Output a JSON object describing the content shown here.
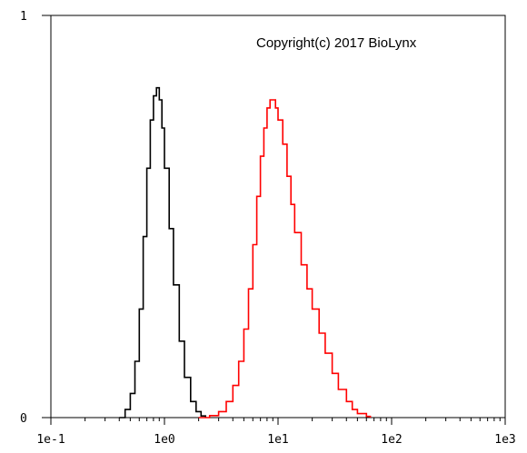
{
  "chart_data": {
    "type": "line",
    "title": "",
    "xlabel": "",
    "ylabel": "",
    "x_scale": "log",
    "xlim": [
      0.1,
      1000
    ],
    "ylim": [
      0,
      1
    ],
    "x_ticks": [
      "1e-1",
      "1e0",
      "1e1",
      "1e2",
      "1e3"
    ],
    "y_ticks": [
      "0",
      "1"
    ],
    "annotation": "Copyright(c) 2017 BioLynx",
    "grid": false,
    "legend": "none",
    "series": [
      {
        "color": "#000000",
        "style": "step",
        "x": [
          0.4,
          0.45,
          0.5,
          0.55,
          0.6,
          0.65,
          0.7,
          0.75,
          0.8,
          0.85,
          0.9,
          0.95,
          1.0,
          1.1,
          1.2,
          1.35,
          1.5,
          1.7,
          1.9,
          2.1,
          2.3
        ],
        "y": [
          0.0,
          0.02,
          0.06,
          0.14,
          0.27,
          0.45,
          0.62,
          0.74,
          0.8,
          0.82,
          0.79,
          0.72,
          0.62,
          0.47,
          0.33,
          0.19,
          0.1,
          0.04,
          0.015,
          0.004,
          0.0
        ]
      },
      {
        "color": "#ff0000",
        "style": "step",
        "x": [
          2.0,
          2.5,
          3.0,
          3.5,
          4.0,
          4.5,
          5.0,
          5.5,
          6.0,
          6.5,
          7.0,
          7.5,
          8.0,
          8.5,
          9.0,
          9.5,
          10.0,
          11.0,
          12.0,
          13.0,
          14.0,
          16.0,
          18.0,
          20.0,
          23.0,
          26.0,
          30.0,
          34.0,
          40.0,
          45.0,
          50.0,
          60.0,
          65.0
        ],
        "y": [
          0.0,
          0.005,
          0.015,
          0.04,
          0.08,
          0.14,
          0.22,
          0.32,
          0.43,
          0.55,
          0.65,
          0.72,
          0.77,
          0.79,
          0.79,
          0.77,
          0.74,
          0.68,
          0.6,
          0.53,
          0.46,
          0.38,
          0.32,
          0.27,
          0.21,
          0.16,
          0.11,
          0.07,
          0.04,
          0.02,
          0.01,
          0.003,
          0.0
        ]
      }
    ]
  }
}
